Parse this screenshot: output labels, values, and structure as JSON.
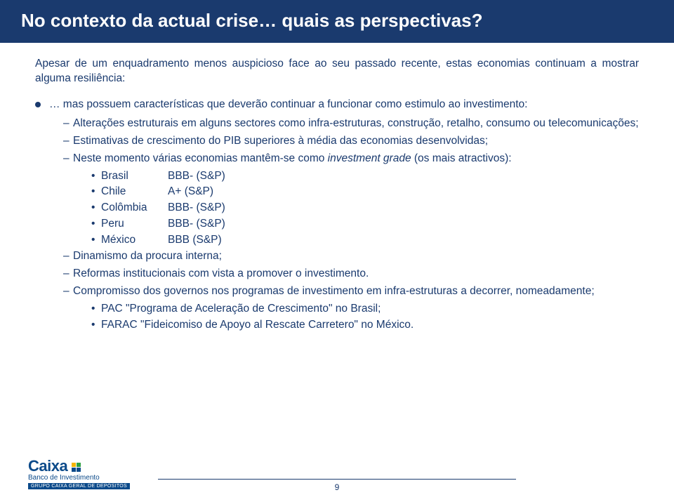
{
  "title": "No contexto da actual crise… quais as perspectivas?",
  "intro": "Apesar de um enquadramento menos auspicioso face ao seu passado recente, estas economias continuam a mostrar alguma resiliência:",
  "bullet1": "… mas possuem características que deverão continuar a funcionar como estimulo ao investimento:",
  "dash1": "Alterações estruturais em alguns sectores como infra-estruturas, construção, retalho, consumo ou telecomunicações;",
  "dash2": "Estimativas de crescimento do PIB superiores à média das economias desenvolvidas;",
  "dash3a": "Neste momento várias economias mantêm-se como ",
  "dash3b": "investment grade",
  "dash3c": " (os mais atractivos):",
  "ratings": [
    {
      "country": "Brasil",
      "value": "BBB- (S&P)"
    },
    {
      "country": "Chile",
      "value": "A+   (S&P)"
    },
    {
      "country": "Colômbia",
      "value": "BBB- (S&P)"
    },
    {
      "country": "Peru",
      "value": "BBB- (S&P)"
    },
    {
      "country": "México",
      "value": "BBB  (S&P)"
    }
  ],
  "dash4": "Dinamismo da procura interna;",
  "dash5": "Reformas institucionais com vista a promover o investimento.",
  "dash6": "Compromisso dos governos nos programas de investimento em infra-estruturas  a decorrer, nomeadamente;",
  "prog1": "PAC \"Programa de Aceleração de Crescimento\" no Brasil;",
  "prog2": "FARAC \"Fideicomiso de Apoyo al Rescate Carretero\" no México.",
  "logo": {
    "name": "Caixa",
    "sub": "Banco de Investimento",
    "grupo": "GRUPO CAIXA GERAL DE DEPÓSITOS"
  },
  "page": "9",
  "colors": {
    "brand": "#1a3a6e"
  }
}
